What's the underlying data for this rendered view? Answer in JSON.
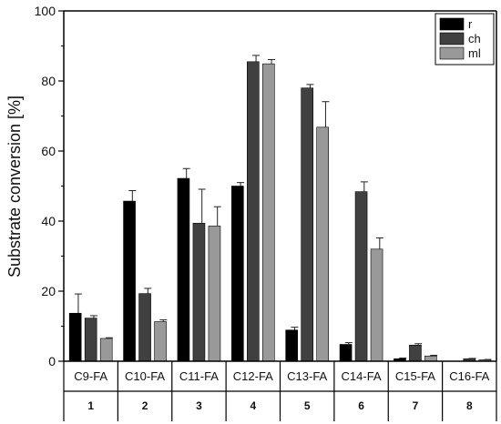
{
  "chart_data": {
    "type": "bar",
    "title": "",
    "xlabel": "",
    "ylabel": "Substrate conversion [%]",
    "ylim": [
      0,
      100
    ],
    "yticks": [
      0,
      20,
      40,
      60,
      80,
      100
    ],
    "grid": false,
    "legend_position": "top-right",
    "categories": [
      "C9-FA",
      "C10-FA",
      "C11-FA",
      "C12-FA",
      "C13-FA",
      "C14-FA",
      "C15-FA",
      "C16-FA"
    ],
    "category_numbers": [
      "1",
      "2",
      "3",
      "4",
      "5",
      "6",
      "7",
      "8"
    ],
    "series": [
      {
        "name": "r",
        "color": "#000000",
        "values": [
          13.7,
          45.7,
          52.2,
          50.0,
          8.9,
          4.8,
          0.7,
          0.0
        ],
        "errors": [
          5.5,
          3.0,
          2.8,
          1.0,
          0.8,
          0.5,
          0.2,
          0.0
        ]
      },
      {
        "name": "ch",
        "color": "#404040",
        "values": [
          12.3,
          19.3,
          39.4,
          85.5,
          78.0,
          48.4,
          4.6,
          0.7
        ],
        "errors": [
          0.7,
          1.5,
          9.7,
          1.8,
          1.0,
          2.8,
          0.4,
          0.1
        ]
      },
      {
        "name": "ml",
        "color": "#999999",
        "values": [
          6.5,
          11.3,
          38.6,
          84.9,
          66.8,
          32.0,
          1.5,
          0.4
        ],
        "errors": [
          0.2,
          0.5,
          5.5,
          1.2,
          7.3,
          3.2,
          0.2,
          0.1
        ]
      }
    ]
  }
}
